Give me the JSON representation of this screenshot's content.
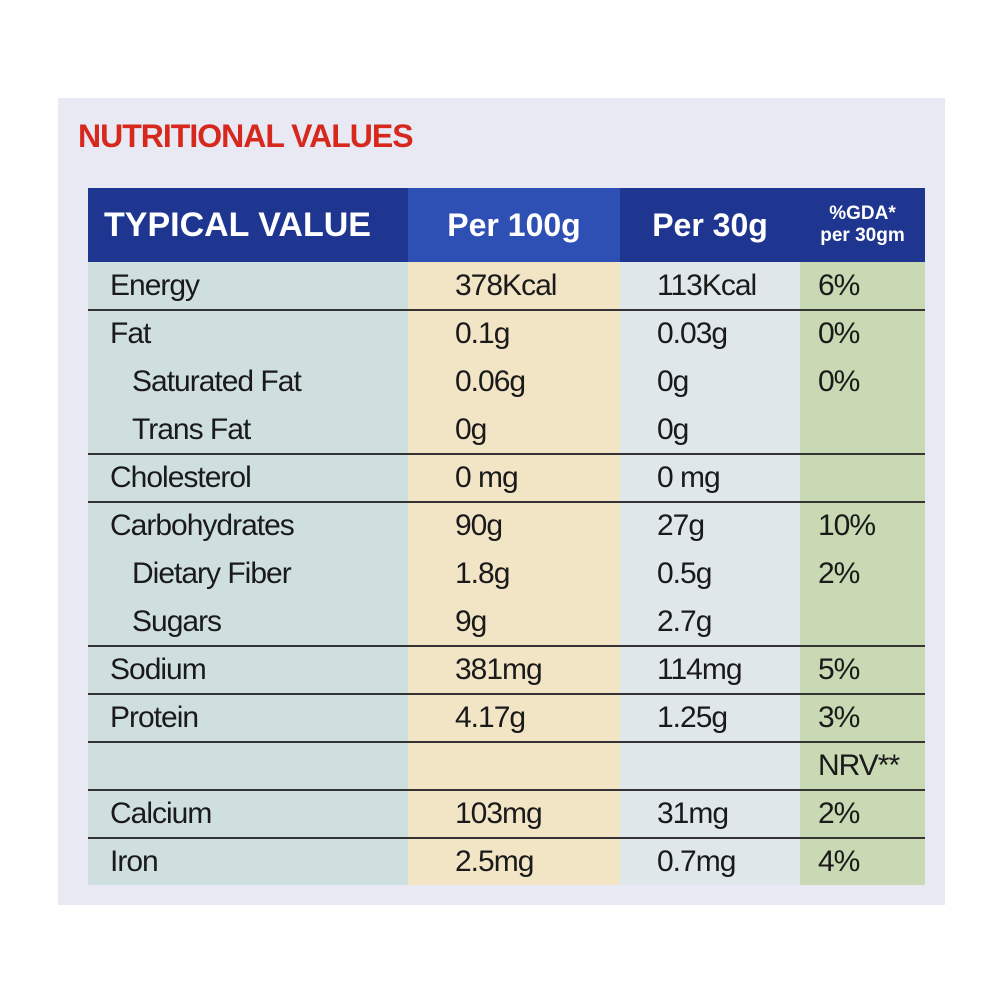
{
  "title": "NUTRITIONAL VALUES",
  "table": {
    "header": {
      "typical_value": "TYPICAL VALUE",
      "per_100g": "Per 100g",
      "per_30g": "Per 30g",
      "gda": [
        "%GDA*",
        "per 30gm"
      ]
    },
    "groups": [
      [
        {
          "name": "Energy",
          "per_100g": "378Kcal",
          "per_30g": "113Kcal",
          "gda": "6%"
        }
      ],
      [
        {
          "name": "Fat",
          "per_100g": "0.1g",
          "per_30g": "0.03g",
          "gda": "0%"
        },
        {
          "name": "Saturated Fat",
          "per_100g": "0.06g",
          "per_30g": "0g",
          "gda": "0%",
          "indent": true
        },
        {
          "name": "Trans Fat",
          "per_100g": "0g",
          "per_30g": "0g",
          "indent": true
        }
      ],
      [
        {
          "name": "Cholesterol",
          "per_100g": "0 mg",
          "per_30g": "0 mg"
        }
      ],
      [
        {
          "name": "Carbohydrates",
          "per_100g": "90g",
          "per_30g": "27g",
          "gda": "10%"
        },
        {
          "name": "Dietary Fiber",
          "per_100g": "1.8g",
          "per_30g": "0.5g",
          "gda": "2%",
          "indent": true
        },
        {
          "name": "Sugars",
          "per_100g": "9g",
          "per_30g": "2.7g",
          "indent": true
        }
      ],
      [
        {
          "name": "Sodium",
          "per_100g": "381mg",
          "per_30g": "114mg",
          "gda": "5%"
        }
      ],
      [
        {
          "name": "Protein",
          "per_100g": "4.17g",
          "per_30g": "1.25g",
          "gda": "3%"
        }
      ],
      [
        {
          "gda": "NRV**"
        }
      ],
      [
        {
          "name": "Calcium",
          "per_100g": "103mg",
          "per_30g": "31mg",
          "gda": "2%"
        }
      ],
      [
        {
          "name": "Iron",
          "per_100g": "2.5mg",
          "per_30g": "0.7mg",
          "gda": "4%"
        }
      ]
    ]
  }
}
